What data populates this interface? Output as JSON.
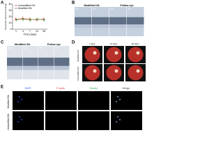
{
  "chart_data": {
    "type": "line",
    "ylabel": "Intraocular pressure (mmHg)",
    "xlabel": "Time (days)",
    "categories": [
      "1",
      "3",
      "7",
      "14",
      "28"
    ],
    "series": [
      {
        "name": "Unmodified IOL",
        "color": "#e03b3b",
        "values": [
          16,
          17,
          16,
          15,
          16
        ],
        "errors": [
          3,
          4,
          3,
          3,
          3
        ]
      },
      {
        "name": "Modified IOL",
        "color": "#3c9a3c",
        "values": [
          15,
          16,
          15,
          16,
          15
        ],
        "errors": [
          3,
          3,
          4,
          3,
          3
        ]
      }
    ],
    "ylim": [
      0,
      40
    ],
    "yticks": [
      0,
      10,
      20,
      30,
      40
    ]
  },
  "panel_labels": [
    "A",
    "B",
    "C",
    "D",
    "E"
  ],
  "b": {
    "columns": [
      "Modified IOL",
      "Fellow eye"
    ],
    "magnifications": [
      "10X",
      "20X",
      "10X",
      "20X"
    ]
  },
  "c": {
    "columns": [
      "Modified IOL",
      "Fellow eye"
    ],
    "magnifications": [
      "10X",
      "20X",
      "10X",
      "20X"
    ]
  },
  "d": {
    "columns": [
      "7 days",
      "14 days",
      "28 days"
    ],
    "rows": [
      "Modified IOL",
      "Unmodified IOL"
    ]
  },
  "e": {
    "columns": [
      "DAPI",
      "F-Actin",
      "Tubulin",
      "Merge"
    ],
    "rows": [
      "Modified IOL",
      "Unmodified IOL"
    ]
  }
}
